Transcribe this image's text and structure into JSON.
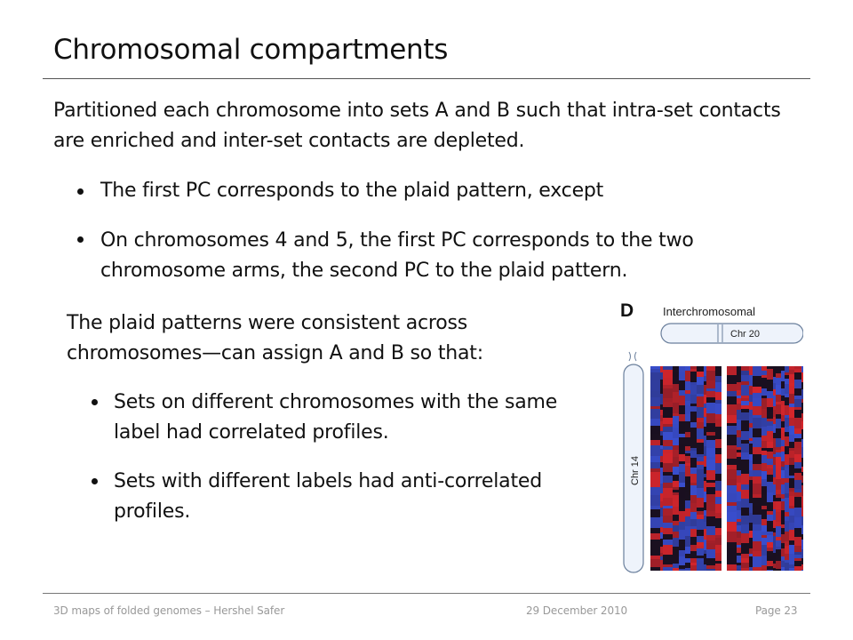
{
  "slide": {
    "title": "Chromosomal compartments",
    "intro": "Partitioned each chromosome into sets A and B such that intra-set contacts are enriched and inter-set contacts are depleted.",
    "bullets_top": [
      "The first PC corresponds to the plaid pattern, except",
      "On chromosomes 4 and 5, the first PC corresponds to the two chromosome arms, the second PC to the plaid pattern."
    ],
    "paragraph2": "The plaid patterns were consistent across chromosomes—can assign A and B so that:",
    "bullets_bottom": [
      "Sets on different chromosomes with the same label had correlated profiles.",
      "Sets with different labels had anti-correlated profiles."
    ]
  },
  "figure": {
    "panel_letter": "D",
    "heading": "Interchromosomal",
    "top_label": "Chr 20",
    "side_label": "Chr 14",
    "colors": {
      "red": "#d8262c",
      "blue": "#3a4fd0",
      "dark": "#1a1020"
    }
  },
  "footer": {
    "left": "3D maps of folded genomes – Hershel Safer",
    "center": "29 December 2010",
    "right": "Page 23"
  }
}
